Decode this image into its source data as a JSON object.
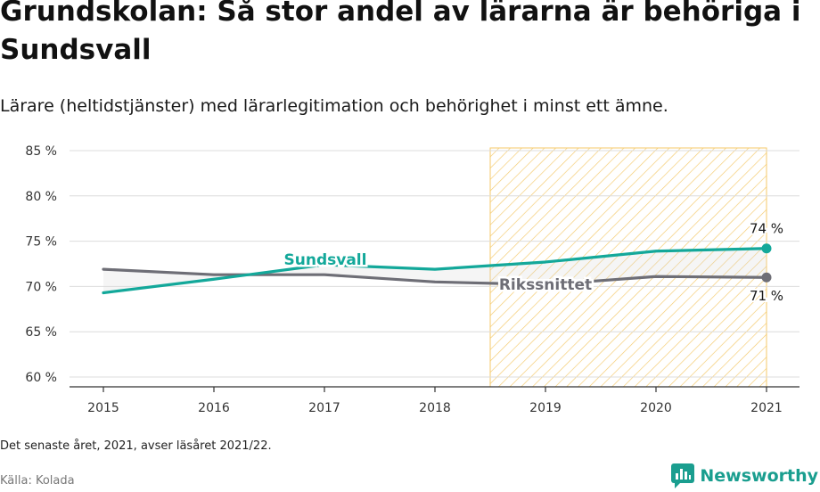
{
  "title": "Grundskolan: Så stor andel av lärarna är behöriga i Sundsvall",
  "subtitle": "Lärare (heltidstjänster) med lärarlegitimation och behörighet i minst ett ämne.",
  "note": "Det senaste året, 2021, avser läsåret 2021/22.",
  "source": "Källa: Kolada",
  "brand": {
    "name": "Newsworthy",
    "icon": "newsworthy-logo-icon"
  },
  "colors": {
    "sundsvall": "#13a89a",
    "riks": "#6e6e76",
    "highlight": "#f7c96e"
  },
  "chart_data": {
    "type": "line",
    "x": [
      2015,
      2016,
      2017,
      2018,
      2019,
      2020,
      2021
    ],
    "xlim": [
      2015,
      2021
    ],
    "ylim": [
      60,
      85
    ],
    "yticks": [
      60,
      65,
      70,
      75,
      80,
      85
    ],
    "ytick_suffix": " %",
    "grid": true,
    "highlight_range": [
      2018.5,
      2021
    ],
    "series": [
      {
        "name": "Sundsvall",
        "values": [
          69.3,
          70.8,
          72.4,
          71.9,
          72.7,
          73.9,
          74.2
        ],
        "end_label": "74 %"
      },
      {
        "name": "Rikssnittet",
        "values": [
          71.9,
          71.3,
          71.3,
          70.5,
          70.2,
          71.1,
          71.0
        ],
        "end_label": "71 %"
      }
    ]
  }
}
